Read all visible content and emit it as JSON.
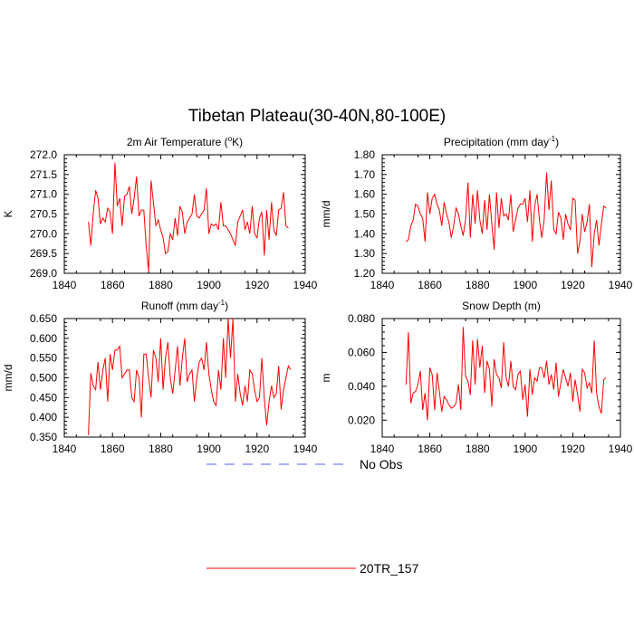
{
  "title": "Tibetan Plateau(30-40N,80-100E)",
  "colors": {
    "model": "#ff0000",
    "obs": "#4c62ff",
    "axis": "#000000"
  },
  "legend": [
    {
      "label": "No Obs",
      "style": "dashed",
      "color": "#4c62ff"
    },
    {
      "label": "20TR_157",
      "style": "solid",
      "color": "#ff0000"
    }
  ],
  "chart_data": [
    {
      "type": "line",
      "title": "2m Air Temperature (",
      "title_sup": "o",
      "title_end": "K)",
      "ylabel": "K",
      "xlim": [
        1840,
        1940
      ],
      "xticks": [
        "1840",
        "1860",
        "1880",
        "1900",
        "1920",
        "1940"
      ],
      "xtick_values": [
        1840,
        1860,
        1880,
        1900,
        1920,
        1940
      ],
      "ylim": [
        269.0,
        272.0
      ],
      "yticks": [
        "269.0",
        "269.5",
        "270.0",
        "270.5",
        "271.0",
        "271.5",
        "272.0"
      ],
      "ytick_values": [
        269.0,
        269.5,
        270.0,
        270.5,
        271.0,
        271.5,
        272.0
      ],
      "series": [
        {
          "name": "20TR_157",
          "x_start": 1850,
          "values": [
            270.3,
            269.7,
            270.5,
            271.1,
            270.9,
            270.25,
            270.4,
            270.3,
            270.65,
            270.55,
            270.0,
            271.8,
            270.7,
            270.9,
            270.2,
            270.95,
            271.0,
            271.2,
            270.5,
            270.9,
            271.45,
            270.45,
            270.6,
            270.6,
            269.7,
            269.05,
            271.35,
            270.8,
            270.2,
            270.35,
            270.1,
            269.9,
            269.5,
            269.55,
            270.0,
            269.85,
            270.4,
            269.95,
            270.7,
            270.55,
            270.0,
            270.3,
            270.4,
            270.5,
            271.0,
            270.45,
            270.4,
            270.5,
            270.6,
            271.15,
            270.0,
            270.25,
            270.2,
            270.25,
            270.1,
            270.8,
            270.2,
            270.2,
            270.1,
            270.0,
            269.85,
            269.7,
            270.3,
            270.45,
            270.6,
            270.1,
            270.3,
            270.0,
            270.7,
            270.0,
            269.9,
            270.4,
            270.55,
            269.45,
            270.6,
            269.85,
            270.8,
            270.1,
            269.95,
            270.6,
            270.65,
            271.05,
            270.2,
            270.15
          ]
        }
      ]
    },
    {
      "type": "line",
      "title": "Precipitation (mm day",
      "title_sup": "-1",
      "title_end": ")",
      "ylabel": "mm/d",
      "xlim": [
        1840,
        1940
      ],
      "xticks": [
        "1840",
        "1860",
        "1880",
        "1900",
        "1920",
        "1940"
      ],
      "xtick_values": [
        1840,
        1860,
        1880,
        1900,
        1920,
        1940
      ],
      "ylim": [
        1.2,
        1.8
      ],
      "yticks": [
        "1.20",
        "1.30",
        "1.40",
        "1.50",
        "1.60",
        "1.70",
        "1.80"
      ],
      "ytick_values": [
        1.2,
        1.3,
        1.4,
        1.5,
        1.6,
        1.7,
        1.8
      ],
      "series": [
        {
          "name": "20TR_157",
          "x_start": 1850,
          "values": [
            1.36,
            1.37,
            1.44,
            1.47,
            1.55,
            1.54,
            1.5,
            1.48,
            1.36,
            1.61,
            1.5,
            1.58,
            1.6,
            1.55,
            1.52,
            1.44,
            1.56,
            1.5,
            1.46,
            1.38,
            1.44,
            1.53,
            1.5,
            1.44,
            1.39,
            1.47,
            1.66,
            1.38,
            1.6,
            1.45,
            1.62,
            1.47,
            1.4,
            1.57,
            1.42,
            1.6,
            1.45,
            1.32,
            1.61,
            1.43,
            1.58,
            1.49,
            1.5,
            1.47,
            1.6,
            1.41,
            1.47,
            1.53,
            1.55,
            1.55,
            1.58,
            1.46,
            1.62,
            1.36,
            1.54,
            1.6,
            1.47,
            1.38,
            1.47,
            1.71,
            1.52,
            1.67,
            1.42,
            1.4,
            1.51,
            1.48,
            1.37,
            1.5,
            1.45,
            1.42,
            1.58,
            1.57,
            1.3,
            1.36,
            1.5,
            1.41,
            1.46,
            1.55,
            1.23,
            1.4,
            1.47,
            1.34,
            1.45,
            1.54,
            1.53
          ]
        }
      ]
    },
    {
      "type": "line",
      "title": "Runoff (mm day",
      "title_sup": "-1",
      "title_end": ")",
      "ylabel": "mm/d",
      "xlim": [
        1840,
        1940
      ],
      "xticks": [
        "1840",
        "1860",
        "1880",
        "1900",
        "1920",
        "1940"
      ],
      "xtick_values": [
        1840,
        1860,
        1880,
        1900,
        1920,
        1940
      ],
      "ylim": [
        0.35,
        0.65
      ],
      "yticks": [
        "0.350",
        "0.400",
        "0.450",
        "0.500",
        "0.550",
        "0.600",
        "0.650"
      ],
      "ytick_values": [
        0.35,
        0.4,
        0.45,
        0.5,
        0.55,
        0.6,
        0.65
      ],
      "series": [
        {
          "name": "20TR_157",
          "x_start": 1850,
          "values": [
            0.355,
            0.512,
            0.48,
            0.47,
            0.54,
            0.47,
            0.52,
            0.55,
            0.44,
            0.56,
            0.52,
            0.57,
            0.57,
            0.58,
            0.5,
            0.51,
            0.52,
            0.52,
            0.45,
            0.44,
            0.52,
            0.5,
            0.4,
            0.56,
            0.56,
            0.5,
            0.45,
            0.57,
            0.55,
            0.49,
            0.6,
            0.47,
            0.55,
            0.59,
            0.5,
            0.46,
            0.52,
            0.58,
            0.48,
            0.55,
            0.6,
            0.49,
            0.51,
            0.52,
            0.44,
            0.5,
            0.54,
            0.55,
            0.52,
            0.59,
            0.51,
            0.47,
            0.44,
            0.43,
            0.52,
            0.47,
            0.6,
            0.5,
            0.65,
            0.55,
            0.65,
            0.44,
            0.51,
            0.46,
            0.43,
            0.48,
            0.44,
            0.52,
            0.51,
            0.47,
            0.44,
            0.45,
            0.55,
            0.45,
            0.38,
            0.44,
            0.48,
            0.45,
            0.46,
            0.53,
            0.42,
            0.47,
            0.5,
            0.53,
            0.52
          ]
        }
      ]
    },
    {
      "type": "line",
      "title": "Snow Depth (m)",
      "title_sup": "",
      "title_end": "",
      "ylabel": "m",
      "xlim": [
        1840,
        1940
      ],
      "xticks": [
        "1840",
        "1860",
        "1880",
        "1900",
        "1920",
        "1940"
      ],
      "xtick_values": [
        1840,
        1860,
        1880,
        1900,
        1920,
        1940
      ],
      "ylim": [
        0.01,
        0.08
      ],
      "yticks": [
        "0.020",
        "0.040",
        "0.060",
        "0.080"
      ],
      "ytick_values": [
        0.02,
        0.04,
        0.06,
        0.08
      ],
      "series": [
        {
          "name": "20TR_157",
          "x_start": 1850,
          "values": [
            0.041,
            0.072,
            0.03,
            0.036,
            0.037,
            0.041,
            0.049,
            0.026,
            0.036,
            0.02,
            0.051,
            0.047,
            0.026,
            0.048,
            0.037,
            0.025,
            0.034,
            0.032,
            0.029,
            0.027,
            0.028,
            0.03,
            0.041,
            0.026,
            0.075,
            0.046,
            0.043,
            0.035,
            0.067,
            0.041,
            0.068,
            0.051,
            0.064,
            0.036,
            0.055,
            0.05,
            0.028,
            0.056,
            0.047,
            0.045,
            0.039,
            0.066,
            0.045,
            0.04,
            0.055,
            0.04,
            0.038,
            0.047,
            0.049,
            0.032,
            0.041,
            0.022,
            0.05,
            0.035,
            0.045,
            0.043,
            0.051,
            0.051,
            0.045,
            0.055,
            0.041,
            0.047,
            0.038,
            0.054,
            0.034,
            0.042,
            0.05,
            0.045,
            0.04,
            0.048,
            0.031,
            0.044,
            0.035,
            0.025,
            0.05,
            0.048,
            0.039,
            0.042,
            0.036,
            0.067,
            0.036,
            0.028,
            0.024,
            0.044,
            0.045
          ]
        }
      ]
    }
  ]
}
